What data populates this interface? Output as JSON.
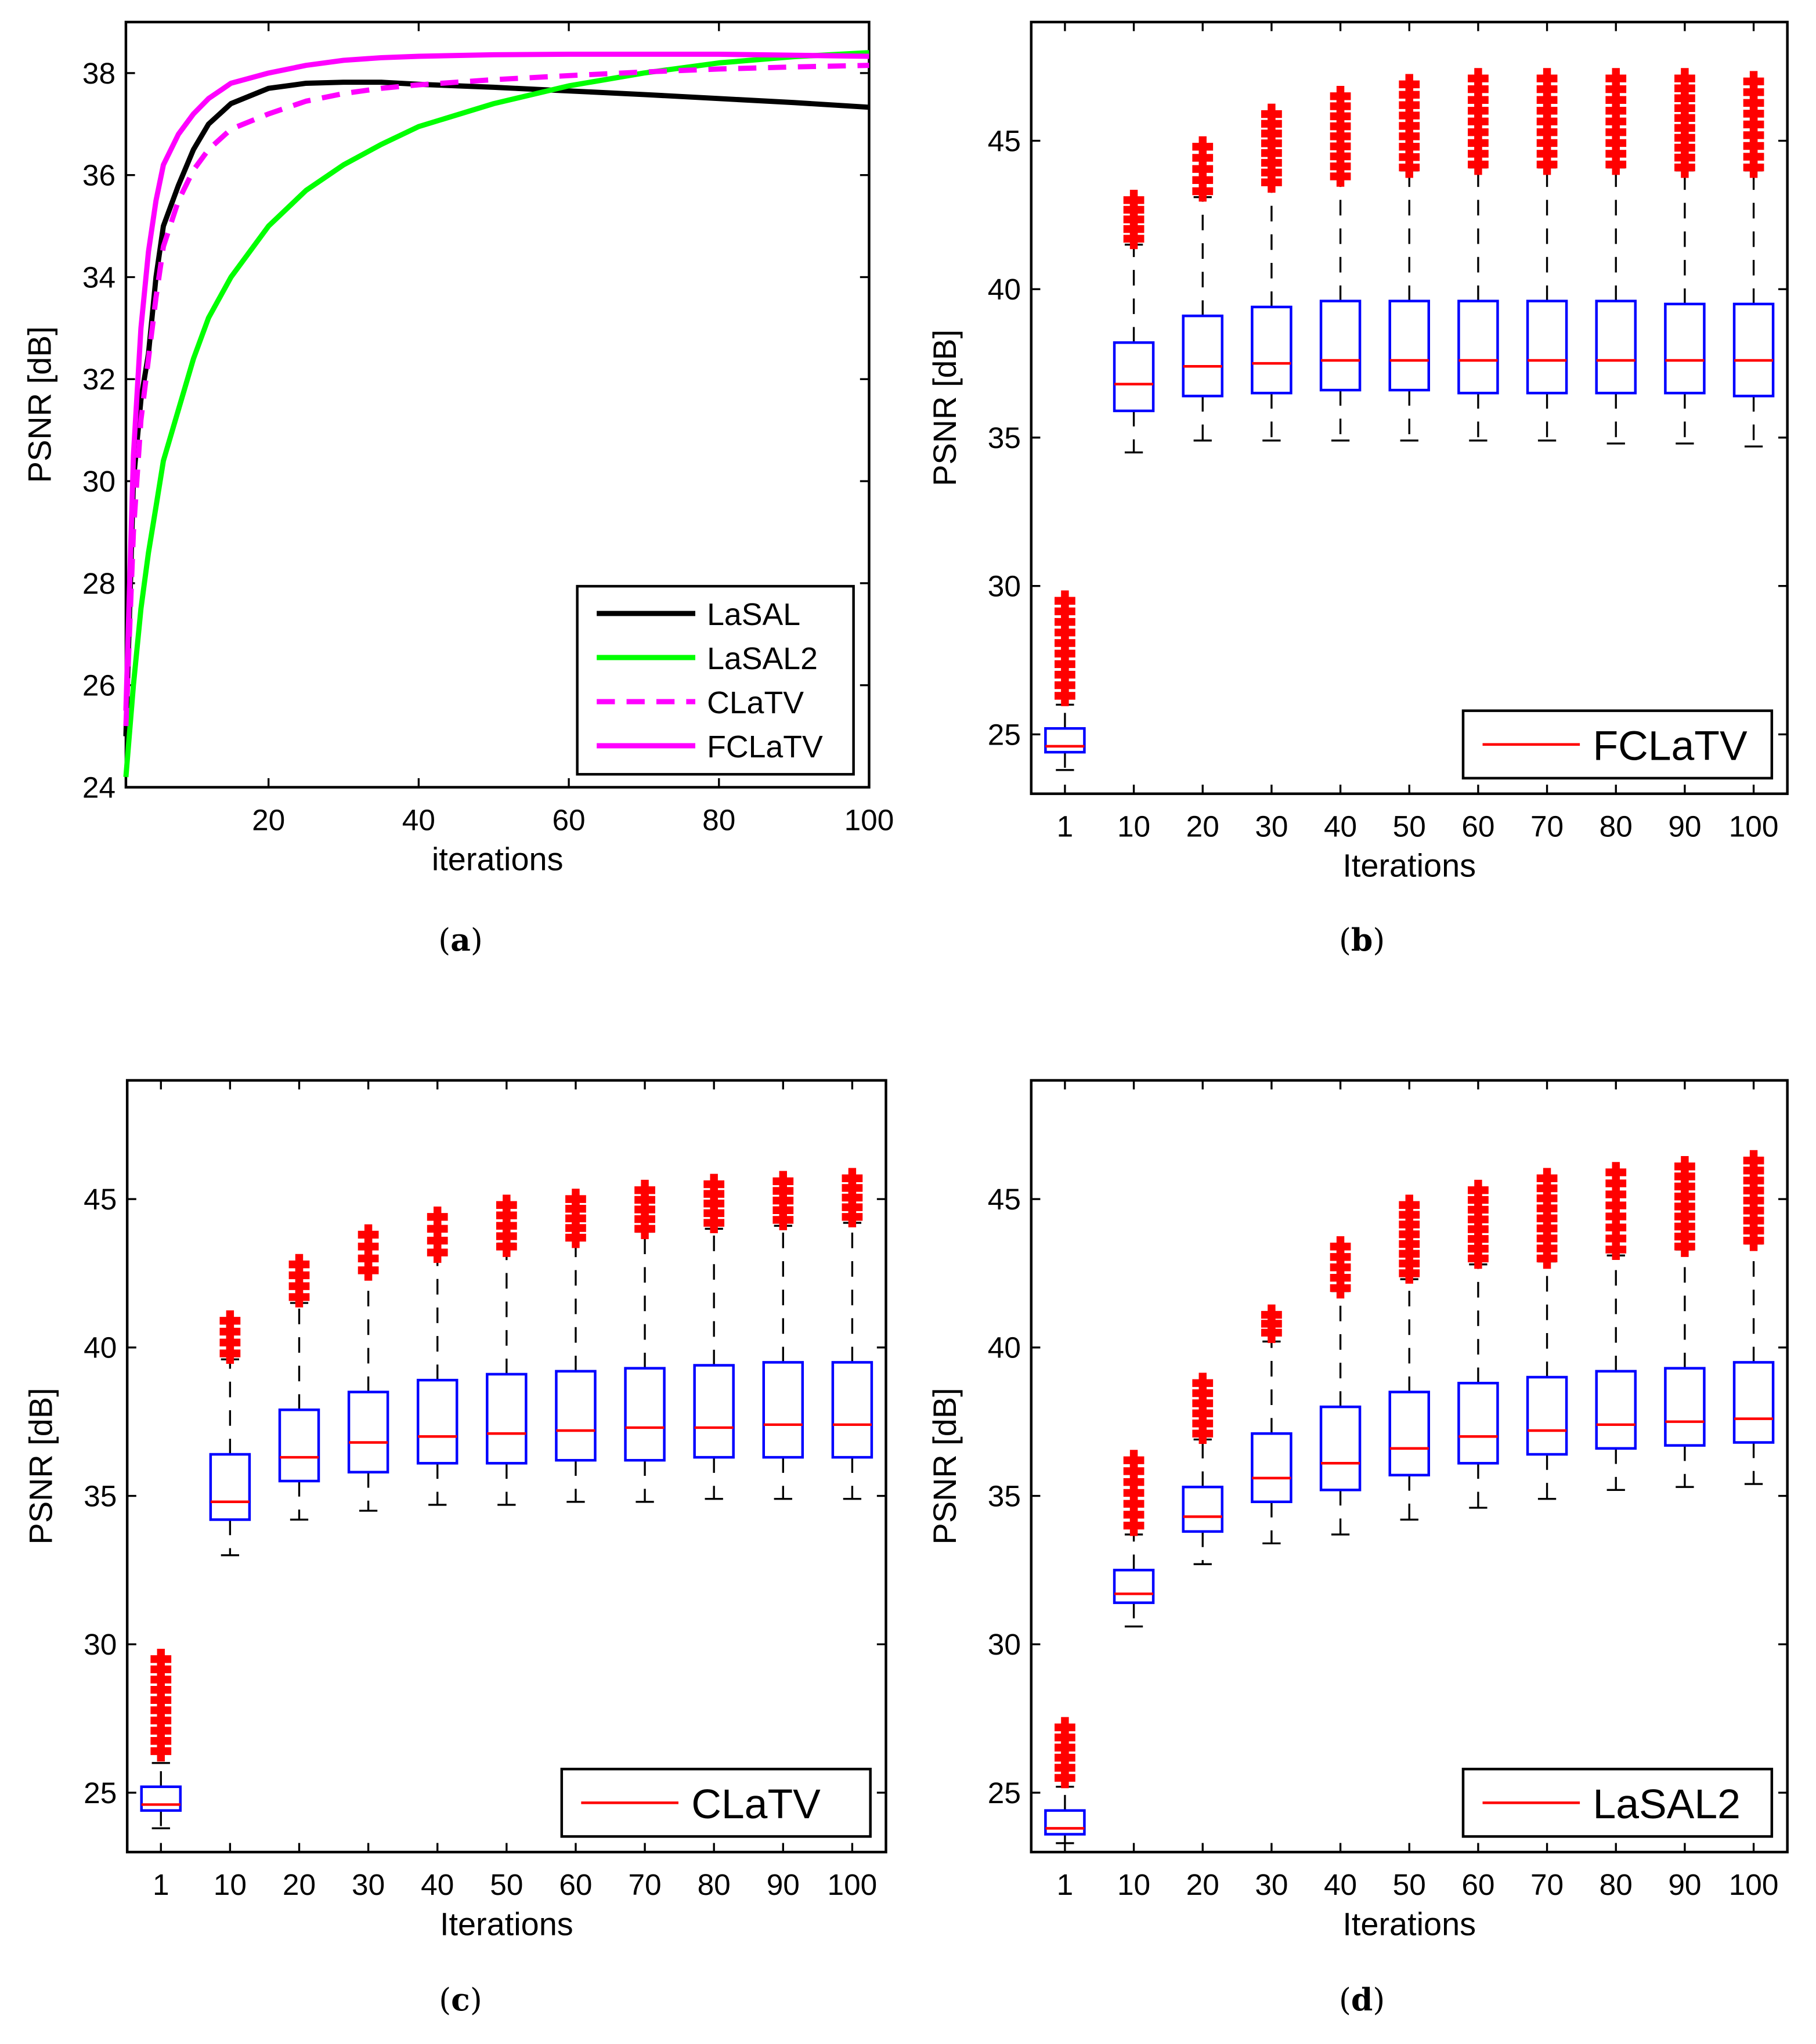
{
  "chart_data": [
    {
      "id": "a",
      "type": "line",
      "caption_letter": "a",
      "xlabel": "iterations",
      "ylabel": "PSNR [dB]",
      "xlim": [
        1,
        100
      ],
      "ylim": [
        24,
        39
      ],
      "xticks": [
        20,
        40,
        60,
        80,
        100
      ],
      "yticks": [
        24,
        26,
        28,
        30,
        32,
        34,
        36,
        38
      ],
      "legend_position": "bottom-right",
      "x": [
        1,
        2,
        3,
        4,
        5,
        6,
        8,
        10,
        12,
        15,
        20,
        25,
        30,
        35,
        40,
        50,
        60,
        70,
        80,
        90,
        100
      ],
      "series": [
        {
          "name": "LaSAL",
          "color": "#000000",
          "dash": false,
          "values": [
            25,
            30,
            31.6,
            32.5,
            34.0,
            35.0,
            35.8,
            36.5,
            37.0,
            37.4,
            37.7,
            37.8,
            37.82,
            37.82,
            37.78,
            37.72,
            37.65,
            37.58,
            37.5,
            37.42,
            37.33
          ]
        },
        {
          "name": "LaSAL2",
          "color": "#00ff00",
          "dash": false,
          "values": [
            24.2,
            26,
            27.5,
            28.6,
            29.5,
            30.4,
            31.4,
            32.4,
            33.2,
            34.0,
            35.0,
            35.7,
            36.2,
            36.6,
            36.95,
            37.4,
            37.75,
            38.0,
            38.2,
            38.32,
            38.4
          ]
        },
        {
          "name": "CLaTV",
          "color": "#ff00ff",
          "dash": true,
          "values": [
            25.2,
            29,
            31.2,
            32.4,
            33.6,
            34.6,
            35.5,
            36.1,
            36.5,
            36.9,
            37.2,
            37.45,
            37.6,
            37.7,
            37.77,
            37.87,
            37.95,
            38.02,
            38.08,
            38.12,
            38.15
          ]
        },
        {
          "name": "FCLaTV",
          "color": "#ff00ff",
          "dash": false,
          "values": [
            25.5,
            30.5,
            33,
            34.5,
            35.5,
            36.2,
            36.8,
            37.2,
            37.5,
            37.8,
            38.0,
            38.15,
            38.25,
            38.3,
            38.33,
            38.36,
            38.37,
            38.37,
            38.37,
            38.35,
            38.33
          ]
        }
      ]
    },
    {
      "id": "b",
      "type": "box",
      "caption_letter": "b",
      "xlabel": "Iterations",
      "ylabel": "PSNR [dB]",
      "ylim": [
        23,
        49
      ],
      "yticks": [
        25,
        30,
        35,
        40,
        45
      ],
      "legend": "FCLaTV",
      "legend_position": "bottom-right",
      "categories": [
        "1",
        "10",
        "20",
        "30",
        "40",
        "50",
        "60",
        "70",
        "80",
        "90",
        "100"
      ],
      "boxes": [
        {
          "median": 24.6,
          "q1": 24.4,
          "q3": 25.2,
          "whisker_low": 23.8,
          "whisker_high": 26.0,
          "outliers": [
            26.3,
            29.5
          ]
        },
        {
          "median": 36.8,
          "q1": 35.9,
          "q3": 38.2,
          "whisker_low": 34.5,
          "whisker_high": 41.5,
          "outliers": [
            41.7,
            43.0
          ]
        },
        {
          "median": 37.4,
          "q1": 36.4,
          "q3": 39.1,
          "whisker_low": 34.9,
          "whisker_high": 43.1,
          "outliers": [
            43.3,
            44.8
          ]
        },
        {
          "median": 37.5,
          "q1": 36.5,
          "q3": 39.4,
          "whisker_low": 34.9,
          "whisker_high": 43.6,
          "outliers": [
            43.6,
            45.9
          ]
        },
        {
          "median": 37.6,
          "q1": 36.6,
          "q3": 39.6,
          "whisker_low": 34.9,
          "whisker_high": 43.8,
          "outliers": [
            43.8,
            46.5
          ]
        },
        {
          "median": 37.6,
          "q1": 36.6,
          "q3": 39.6,
          "whisker_low": 34.9,
          "whisker_high": 44.0,
          "outliers": [
            44.1,
            46.9
          ]
        },
        {
          "median": 37.6,
          "q1": 36.5,
          "q3": 39.6,
          "whisker_low": 34.9,
          "whisker_high": 44.1,
          "outliers": [
            44.2,
            47.1
          ]
        },
        {
          "median": 37.6,
          "q1": 36.5,
          "q3": 39.6,
          "whisker_low": 34.9,
          "whisker_high": 44.1,
          "outliers": [
            44.2,
            47.1
          ]
        },
        {
          "median": 37.6,
          "q1": 36.5,
          "q3": 39.6,
          "whisker_low": 34.8,
          "whisker_high": 44.1,
          "outliers": [
            44.2,
            47.1
          ]
        },
        {
          "median": 37.6,
          "q1": 36.5,
          "q3": 39.5,
          "whisker_low": 34.8,
          "whisker_high": 44.0,
          "outliers": [
            44.1,
            47.1
          ]
        },
        {
          "median": 37.6,
          "q1": 36.4,
          "q3": 39.5,
          "whisker_low": 34.7,
          "whisker_high": 44.0,
          "outliers": [
            44.1,
            47.0
          ]
        }
      ]
    },
    {
      "id": "c",
      "type": "box",
      "caption_letter": "c",
      "xlabel": "Iterations",
      "ylabel": "PSNR [dB]",
      "ylim": [
        23,
        49
      ],
      "yticks": [
        25,
        30,
        35,
        40,
        45
      ],
      "legend": "CLaTV",
      "legend_position": "bottom-right",
      "categories": [
        "1",
        "10",
        "20",
        "30",
        "40",
        "50",
        "60",
        "70",
        "80",
        "90",
        "100"
      ],
      "boxes": [
        {
          "median": 24.6,
          "q1": 24.4,
          "q3": 25.2,
          "whisker_low": 23.8,
          "whisker_high": 26.0,
          "outliers": [
            26.4,
            29.5
          ]
        },
        {
          "median": 34.8,
          "q1": 34.2,
          "q3": 36.4,
          "whisker_low": 33.0,
          "whisker_high": 39.6,
          "outliers": [
            39.8,
            40.9
          ]
        },
        {
          "median": 36.3,
          "q1": 35.5,
          "q3": 37.9,
          "whisker_low": 34.2,
          "whisker_high": 41.5,
          "outliers": [
            41.7,
            42.8
          ]
        },
        {
          "median": 36.8,
          "q1": 35.8,
          "q3": 38.5,
          "whisker_low": 34.5,
          "whisker_high": 42.6,
          "outliers": [
            42.6,
            43.8
          ]
        },
        {
          "median": 37.0,
          "q1": 36.1,
          "q3": 38.9,
          "whisker_low": 34.7,
          "whisker_high": 43.2,
          "outliers": [
            43.2,
            44.4
          ]
        },
        {
          "median": 37.1,
          "q1": 36.1,
          "q3": 39.1,
          "whisker_low": 34.7,
          "whisker_high": 43.5,
          "outliers": [
            43.4,
            44.8
          ]
        },
        {
          "median": 37.2,
          "q1": 36.2,
          "q3": 39.2,
          "whisker_low": 34.8,
          "whisker_high": 43.7,
          "outliers": [
            43.7,
            45.0
          ]
        },
        {
          "median": 37.3,
          "q1": 36.2,
          "q3": 39.3,
          "whisker_low": 34.8,
          "whisker_high": 43.9,
          "outliers": [
            44.0,
            45.3
          ]
        },
        {
          "median": 37.3,
          "q1": 36.3,
          "q3": 39.4,
          "whisker_low": 34.9,
          "whisker_high": 44.0,
          "outliers": [
            44.2,
            45.5
          ]
        },
        {
          "median": 37.4,
          "q1": 36.3,
          "q3": 39.5,
          "whisker_low": 34.9,
          "whisker_high": 44.1,
          "outliers": [
            44.3,
            45.6
          ]
        },
        {
          "median": 37.4,
          "q1": 36.3,
          "q3": 39.5,
          "whisker_low": 34.9,
          "whisker_high": 44.2,
          "outliers": [
            44.4,
            45.7
          ]
        }
      ]
    },
    {
      "id": "d",
      "type": "box",
      "caption_letter": "d",
      "xlabel": "Iterations",
      "ylabel": "PSNR [dB]",
      "ylim": [
        23,
        49
      ],
      "yticks": [
        25,
        30,
        35,
        40,
        45
      ],
      "legend": "LaSAL2",
      "legend_position": "bottom-right",
      "categories": [
        "1",
        "10",
        "20",
        "30",
        "40",
        "50",
        "60",
        "70",
        "80",
        "90",
        "100"
      ],
      "boxes": [
        {
          "median": 23.8,
          "q1": 23.6,
          "q3": 24.4,
          "whisker_low": 23.3,
          "whisker_high": 25.2,
          "outliers": [
            25.5,
            27.2
          ]
        },
        {
          "median": 31.7,
          "q1": 31.4,
          "q3": 32.5,
          "whisker_low": 30.6,
          "whisker_high": 33.7,
          "outliers": [
            34.0,
            36.2
          ]
        },
        {
          "median": 34.3,
          "q1": 33.8,
          "q3": 35.3,
          "whisker_low": 32.7,
          "whisker_high": 36.9,
          "outliers": [
            37.1,
            38.8
          ]
        },
        {
          "median": 35.6,
          "q1": 34.8,
          "q3": 37.1,
          "whisker_low": 33.4,
          "whisker_high": 40.2,
          "outliers": [
            40.5,
            41.1
          ]
        },
        {
          "median": 36.1,
          "q1": 35.2,
          "q3": 38.0,
          "whisker_low": 33.7,
          "whisker_high": 41.9,
          "outliers": [
            42.0,
            43.4
          ]
        },
        {
          "median": 36.6,
          "q1": 35.7,
          "q3": 38.5,
          "whisker_low": 34.2,
          "whisker_high": 42.3,
          "outliers": [
            42.5,
            44.8
          ]
        },
        {
          "median": 37.0,
          "q1": 36.1,
          "q3": 38.8,
          "whisker_low": 34.6,
          "whisker_high": 42.8,
          "outliers": [
            43.0,
            45.3
          ]
        },
        {
          "median": 37.2,
          "q1": 36.4,
          "q3": 39.0,
          "whisker_low": 34.9,
          "whisker_high": 42.9,
          "outliers": [
            43.0,
            45.7
          ]
        },
        {
          "median": 37.4,
          "q1": 36.6,
          "q3": 39.2,
          "whisker_low": 35.2,
          "whisker_high": 43.1,
          "outliers": [
            43.3,
            45.9
          ]
        },
        {
          "median": 37.5,
          "q1": 36.7,
          "q3": 39.3,
          "whisker_low": 35.3,
          "whisker_high": 43.3,
          "outliers": [
            43.4,
            46.1
          ]
        },
        {
          "median": 37.6,
          "q1": 36.8,
          "q3": 39.5,
          "whisker_low": 35.4,
          "whisker_high": 43.5,
          "outliers": [
            43.6,
            46.3
          ]
        }
      ]
    }
  ],
  "colors": {
    "box": "#0000ff",
    "median": "#ff0000",
    "outlier": "#ff0000",
    "whisker": "#000000"
  }
}
